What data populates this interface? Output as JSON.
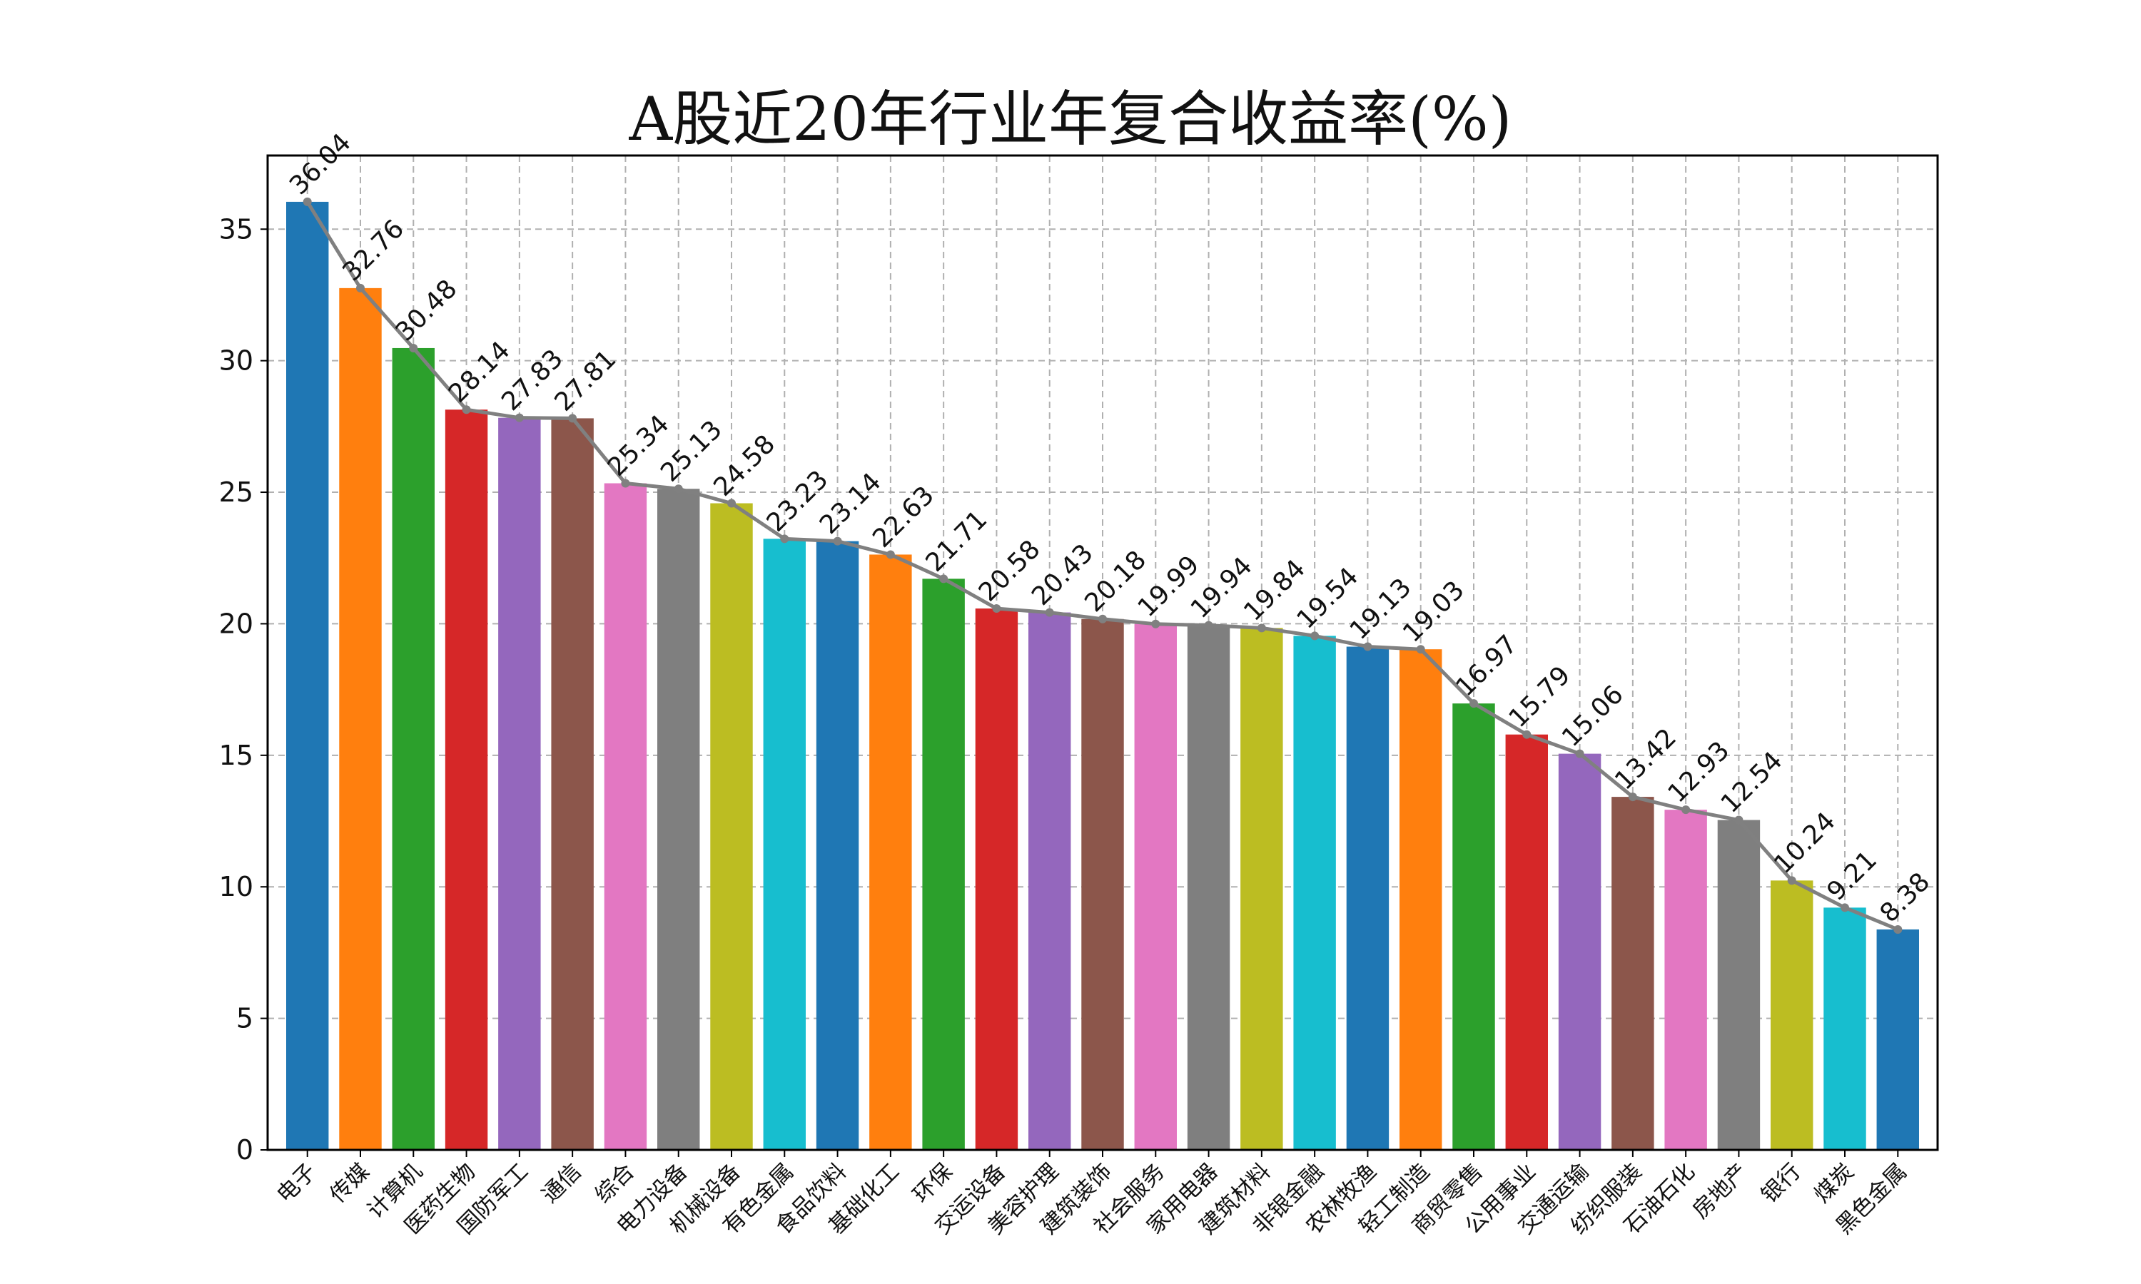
{
  "chart_data": {
    "type": "bar",
    "title": "A股近20年行业年复合收益率(%)",
    "xlabel": "",
    "ylabel": "",
    "ylim": [
      0,
      37.8
    ],
    "yticks": [
      0,
      5,
      10,
      15,
      20,
      25,
      30,
      35
    ],
    "grid": true,
    "legend": "none",
    "categories": [
      "电子",
      "传媒",
      "计算机",
      "医药生物",
      "国防军工",
      "通信",
      "综合",
      "电力设备",
      "机械设备",
      "有色金属",
      "食品饮料",
      "基础化工",
      "环保",
      "交运设备",
      "美容护理",
      "建筑装饰",
      "社会服务",
      "家用电器",
      "建筑材料",
      "非银金融",
      "农林牧渔",
      "轻工制造",
      "商贸零售",
      "公用事业",
      "交通运输",
      "纺织服装",
      "石油石化",
      "房地产",
      "银行",
      "煤炭",
      "黑色金属"
    ],
    "values": [
      36.04,
      32.76,
      30.48,
      28.14,
      27.83,
      27.81,
      25.34,
      25.13,
      24.58,
      23.23,
      23.14,
      22.63,
      21.71,
      20.58,
      20.43,
      20.18,
      19.99,
      19.94,
      19.84,
      19.54,
      19.13,
      19.03,
      16.97,
      15.79,
      15.06,
      13.42,
      12.93,
      12.54,
      10.24,
      9.21,
      8.38
    ],
    "bar_colors": [
      "#1f77b4",
      "#ff7f0e",
      "#2ca02c",
      "#d62728",
      "#9467bd",
      "#8c564b",
      "#e377c2",
      "#7f7f7f",
      "#bcbd22",
      "#17becf"
    ],
    "line_color": "#808080"
  }
}
